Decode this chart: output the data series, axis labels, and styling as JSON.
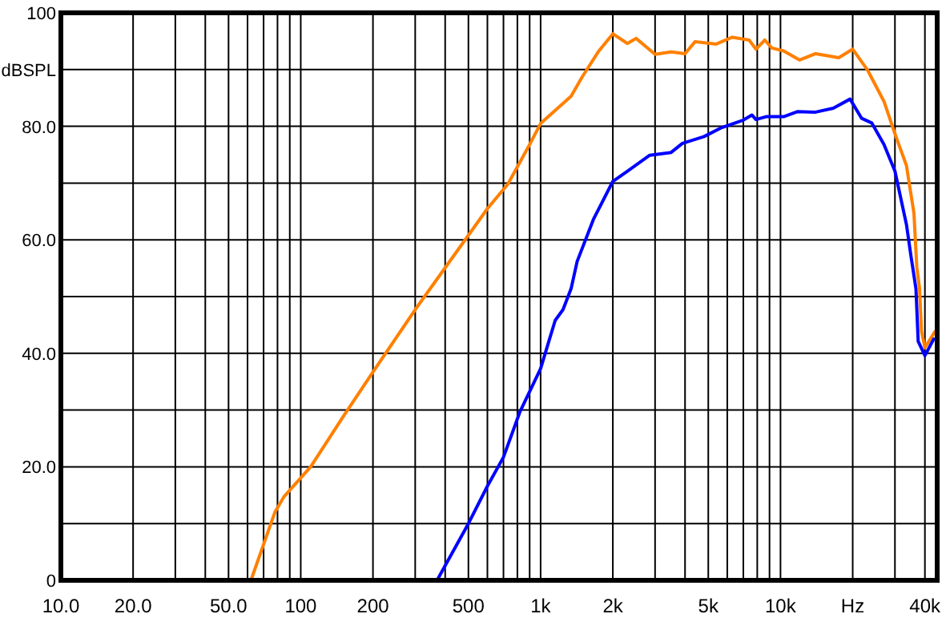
{
  "chart_data": {
    "type": "line",
    "xlim": [
      10,
      45000
    ],
    "ylim": [
      0,
      100
    ],
    "log": "x",
    "grid": true,
    "line_style": "solid",
    "xticks": [
      {
        "value": 10,
        "label": "10.0"
      },
      {
        "value": 20,
        "label": "20.0"
      },
      {
        "value": 30,
        "label": null
      },
      {
        "value": 40,
        "label": null
      },
      {
        "value": 50,
        "label": "50.0"
      },
      {
        "value": 60,
        "label": null
      },
      {
        "value": 70,
        "label": null
      },
      {
        "value": 80,
        "label": null
      },
      {
        "value": 90,
        "label": null
      },
      100,
      200,
      {
        "value": 300,
        "label": null
      },
      {
        "value": 400,
        "label": null
      },
      500,
      {
        "value": 600,
        "label": null
      },
      {
        "value": 700,
        "label": null
      },
      {
        "value": 800,
        "label": null
      },
      {
        "value": 900,
        "label": null
      },
      {
        "value": 1000,
        "label": "1k"
      },
      {
        "value": 2000,
        "label": "2k"
      },
      {
        "value": 3000,
        "label": null
      },
      {
        "value": 4000,
        "label": null
      },
      {
        "value": 5000,
        "label": "5k"
      },
      {
        "value": 6000,
        "label": null
      },
      {
        "value": 7000,
        "label": null
      },
      {
        "value": 8000,
        "label": null
      },
      {
        "value": 9000,
        "label": null
      },
      {
        "value": 10000,
        "label": "10k"
      },
      {
        "value": 20000,
        "label": "Hz"
      },
      {
        "value": 30000,
        "label": null
      },
      {
        "value": 40000,
        "label": "40k"
      }
    ],
    "yticks": [
      0,
      {
        "value": 10,
        "label": null
      },
      {
        "value": 20,
        "label": "20.0"
      },
      {
        "value": 30,
        "label": null
      },
      {
        "value": 40,
        "label": "40.0"
      },
      {
        "value": 50,
        "label": null
      },
      {
        "value": 60,
        "label": "60.0"
      },
      {
        "value": 70,
        "label": null
      },
      {
        "value": 80,
        "label": "80.0"
      },
      {
        "value": 90,
        "label": "dBSPL"
      },
      100
    ],
    "series": [
      {
        "color": "#ff8000",
        "x": [
          62,
          78,
          85,
          110,
          150,
          200,
          300,
          500,
          600,
          730,
          900,
          1000,
          1340,
          1490,
          1750,
          2000,
          2300,
          2500,
          3000,
          3500,
          4000,
          4400,
          5400,
          6300,
          7400,
          7900,
          8600,
          9200,
          10300,
          12000,
          14000,
          17500,
          20000,
          23000,
          27000,
          30000,
          33500,
          36000,
          37000,
          38000,
          38700,
          40000,
          44000
        ],
        "values": [
          0,
          12,
          14.7,
          20,
          28.8,
          36.7,
          47.7,
          60.8,
          65.5,
          69.8,
          76.8,
          80.5,
          85.3,
          88.7,
          93.3,
          96.3,
          94.6,
          95.5,
          92.7,
          93.1,
          92.8,
          94.9,
          94.5,
          95.7,
          95.2,
          93.6,
          95.2,
          93.8,
          93.3,
          91.7,
          92.8,
          92.1,
          93.6,
          90,
          84.4,
          78.7,
          73.1,
          64.7,
          55.2,
          51.4,
          43.9,
          41,
          43.8
        ]
      },
      {
        "color": "#0000ff",
        "x": [
          370,
          500,
          600,
          700,
          820,
          1000,
          1080,
          1150,
          1240,
          1340,
          1420,
          1660,
          2000,
          2300,
          2850,
          3500,
          3900,
          4800,
          5700,
          7000,
          7600,
          7900,
          8700,
          10300,
          11800,
          14000,
          16600,
          19500,
          21800,
          24000,
          27000,
          30000,
          33500,
          35000,
          36700,
          37500,
          40000,
          43500
        ],
        "values": [
          0,
          10,
          16.6,
          21.7,
          29.7,
          37.3,
          42,
          45.8,
          47.7,
          51.4,
          56.2,
          63.6,
          70.3,
          72.1,
          74.9,
          75.4,
          77,
          78.2,
          79.8,
          81.1,
          82,
          81.2,
          81.7,
          81.7,
          82.6,
          82.5,
          83.2,
          84.8,
          81.4,
          80.6,
          76.8,
          72.1,
          62.7,
          57.1,
          51.4,
          42.1,
          39.6,
          42.5
        ]
      }
    ]
  }
}
